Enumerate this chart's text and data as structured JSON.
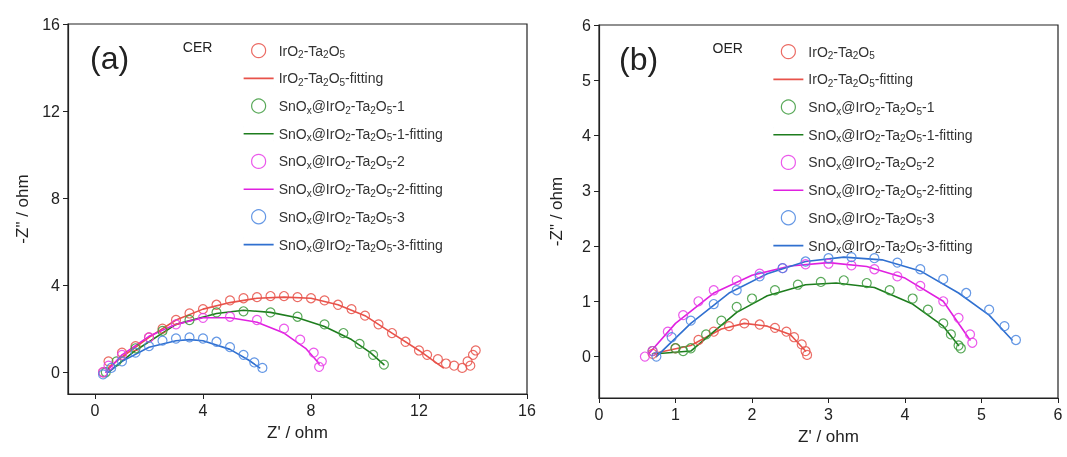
{
  "chart_data": [
    {
      "type": "scatter",
      "xlabel": "Z' / ohm",
      "ylabel": "-Z\" / ohm",
      "legend_title": "CER",
      "annotations": [
        "(a)"
      ],
      "xlim": [
        -1,
        16
      ],
      "ylim": [
        -1,
        16
      ],
      "xticks": [
        0,
        4,
        8,
        12,
        16
      ],
      "yticks": [
        0,
        4,
        8,
        12,
        16
      ],
      "legend": "top",
      "series": [
        {
          "name": "IrO$_{2}$-Ta$_{2}$O$_{5}$",
          "type": "scatter",
          "marker": "circle",
          "color": "#e8524a",
          "x": [
            0.3,
            0.5,
            1,
            1.5,
            2,
            2.5,
            3,
            3.5,
            4,
            4.5,
            5,
            5.5,
            6,
            6.5,
            7,
            7.5,
            8,
            8.5,
            9,
            9.5,
            10,
            10.5,
            11,
            11.5,
            12,
            12.3,
            12.7,
            13,
            13.3,
            13.6,
            13.9,
            13.8,
            14.0,
            14.1
          ],
          "values": [
            0,
            0.5,
            0.9,
            1.2,
            1.6,
            2.0,
            2.4,
            2.7,
            2.9,
            3.1,
            3.3,
            3.4,
            3.45,
            3.5,
            3.5,
            3.45,
            3.4,
            3.3,
            3.1,
            2.9,
            2.6,
            2.2,
            1.8,
            1.4,
            1.0,
            0.8,
            0.6,
            0.4,
            0.3,
            0.2,
            0.3,
            0.5,
            0.8,
            1.0
          ]
        },
        {
          "name": "IrO$_{2}$-Ta$_{2}$O$_{5}$-fitting",
          "type": "line",
          "color": "#e8524a",
          "x": [
            0.5,
            1,
            2,
            3,
            4,
            5,
            6,
            7,
            8,
            9,
            10,
            11,
            12,
            12.9
          ],
          "values": [
            0.2,
            0.7,
            1.6,
            2.4,
            2.9,
            3.2,
            3.4,
            3.45,
            3.4,
            3.1,
            2.6,
            1.8,
            1.0,
            0.2
          ]
        },
        {
          "name": "SnO$_{x}$@IrO$_{2}$-Ta$_{2}$O$_{5}$-1",
          "type": "scatter",
          "marker": "circle",
          "color": "#3c9a3c",
          "x": [
            0.4,
            0.8,
            1.5,
            2.5,
            3.5,
            4.5,
            5.5,
            6.5,
            7.5,
            8.5,
            9.2,
            9.8,
            10.3,
            10.7
          ],
          "values": [
            0,
            0.5,
            1.1,
            1.9,
            2.4,
            2.75,
            2.8,
            2.75,
            2.55,
            2.2,
            1.8,
            1.3,
            0.8,
            0.35
          ]
        },
        {
          "name": "SnO$_{x}$@IrO$_{2}$-Ta$_{2}$O$_{5}$-1-fitting",
          "type": "line",
          "color": "#1e7d1e",
          "x": [
            0.5,
            1.5,
            3,
            4.5,
            5.5,
            6.5,
            7.5,
            8.5,
            9.5,
            10.2,
            10.7
          ],
          "values": [
            0,
            1.0,
            2.2,
            2.7,
            2.85,
            2.75,
            2.5,
            2.1,
            1.5,
            0.9,
            0.35
          ]
        },
        {
          "name": "SnO$_{x}$@IrO$_{2}$-Ta$_{2}$O$_{5}$-2",
          "type": "scatter",
          "marker": "circle",
          "color": "#e83ce8",
          "x": [
            0.3,
            0.5,
            1,
            2,
            3,
            4,
            5,
            6,
            7,
            7.6,
            8.1,
            8.4,
            8.3
          ],
          "values": [
            0,
            0.3,
            0.8,
            1.6,
            2.2,
            2.5,
            2.55,
            2.4,
            2.0,
            1.5,
            0.9,
            0.5,
            0.25
          ]
        },
        {
          "name": "SnO$_{x}$@IrO$_{2}$-Ta$_{2}$O$_{5}$-2-fitting",
          "type": "line",
          "color": "#e020e0",
          "x": [
            0.4,
            1,
            2,
            3,
            4,
            5,
            6,
            7,
            7.8,
            8.3
          ],
          "values": [
            0,
            0.8,
            1.65,
            2.2,
            2.5,
            2.5,
            2.3,
            1.8,
            1.1,
            0.4
          ]
        },
        {
          "name": "SnO$_{x}$@IrO$_{2}$-Ta$_{2}$O$_{5}$-3",
          "type": "scatter",
          "marker": "circle",
          "color": "#4a86e0",
          "x": [
            0.3,
            0.6,
            1,
            1.5,
            2,
            2.5,
            3,
            3.5,
            4,
            4.5,
            5,
            5.5,
            5.9,
            6.2
          ],
          "values": [
            -0.1,
            0.2,
            0.5,
            0.9,
            1.2,
            1.45,
            1.55,
            1.6,
            1.55,
            1.4,
            1.15,
            0.8,
            0.45,
            0.2
          ]
        },
        {
          "name": "SnO$_{x}$@IrO$_{2}$-Ta$_{2}$O$_{5}$-3-fitting",
          "type": "line",
          "color": "#3070d0",
          "x": [
            0.5,
            1,
            2,
            3,
            3.5,
            4,
            5,
            5.7,
            6.1
          ],
          "values": [
            0,
            0.5,
            1.15,
            1.45,
            1.5,
            1.45,
            1.05,
            0.55,
            0.2
          ]
        }
      ]
    },
    {
      "type": "scatter",
      "xlabel": "Z' / ohm",
      "ylabel": "-Z\" / ohm",
      "legend_title": "OER",
      "annotations": [
        "(b)"
      ],
      "xlim": [
        0,
        6
      ],
      "ylim": [
        -0.75,
        6
      ],
      "xticks": [
        0,
        1,
        2,
        3,
        4,
        5,
        6
      ],
      "yticks": [
        0,
        1,
        2,
        3,
        4,
        5,
        6
      ],
      "legend": "top",
      "series": [
        {
          "name": "IrO$_{2}$-Ta$_{2}$O$_{5}$",
          "type": "scatter",
          "marker": "circle",
          "color": "#e8524a",
          "x": [
            0.7,
            1,
            1.3,
            1.5,
            1.7,
            1.9,
            2.1,
            2.3,
            2.45,
            2.55,
            2.65,
            2.7,
            2.72
          ],
          "values": [
            0.05,
            0.15,
            0.3,
            0.45,
            0.55,
            0.6,
            0.58,
            0.52,
            0.45,
            0.35,
            0.22,
            0.1,
            0.03
          ]
        },
        {
          "name": "IrO$_{2}$-Ta$_{2}$O$_{5}$-fitting",
          "type": "line",
          "color": "#e8524a",
          "x": [
            0.7,
            1.2,
            1.6,
            1.9,
            2.2,
            2.5,
            2.7
          ],
          "values": [
            0.05,
            0.2,
            0.5,
            0.6,
            0.55,
            0.4,
            0.1
          ]
        },
        {
          "name": "SnO$_{x}$@IrO$_{2}$-Ta$_{2}$O$_{5}$-1",
          "type": "scatter",
          "marker": "circle",
          "color": "#3c9a3c",
          "x": [
            0.7,
            1.0,
            1.1,
            1.2,
            1.4,
            1.6,
            1.8,
            2.0,
            2.3,
            2.6,
            2.9,
            3.2,
            3.5,
            3.8,
            4.1,
            4.3,
            4.5,
            4.6,
            4.7,
            4.73
          ],
          "values": [
            0.1,
            0.15,
            0.1,
            0.15,
            0.4,
            0.65,
            0.9,
            1.05,
            1.2,
            1.3,
            1.35,
            1.38,
            1.33,
            1.2,
            1.05,
            0.85,
            0.6,
            0.4,
            0.2,
            0.15
          ]
        },
        {
          "name": "SnO$_{x}$@IrO$_{2}$-Ta$_{2}$O$_{5}$-1-fitting",
          "type": "line",
          "color": "#1e7d1e",
          "x": [
            0.75,
            1.2,
            1.5,
            1.8,
            2.2,
            2.7,
            3.1,
            3.6,
            4.1,
            4.5,
            4.7
          ],
          "values": [
            0.05,
            0.1,
            0.45,
            0.8,
            1.1,
            1.3,
            1.33,
            1.25,
            0.95,
            0.55,
            0.2
          ]
        },
        {
          "name": "SnO$_{x}$@IrO$_{2}$-Ta$_{2}$O$_{5}$-2",
          "type": "scatter",
          "marker": "circle",
          "color": "#e83ce8",
          "x": [
            0.6,
            0.7,
            0.9,
            1.1,
            1.3,
            1.5,
            1.8,
            2.1,
            2.4,
            2.7,
            3.0,
            3.3,
            3.6,
            3.9,
            4.2,
            4.5,
            4.7,
            4.85,
            4.88
          ],
          "values": [
            0,
            0.1,
            0.45,
            0.75,
            1.0,
            1.2,
            1.38,
            1.5,
            1.6,
            1.67,
            1.68,
            1.65,
            1.58,
            1.45,
            1.28,
            1.0,
            0.7,
            0.4,
            0.25
          ]
        },
        {
          "name": "SnO$_{x}$@IrO$_{2}$-Ta$_{2}$O$_{5}$-2-fitting",
          "type": "line",
          "color": "#e020e0",
          "x": [
            0.65,
            1.0,
            1.5,
            2.0,
            2.5,
            3.0,
            3.5,
            4.0,
            4.5,
            4.85
          ],
          "values": [
            0.05,
            0.6,
            1.15,
            1.47,
            1.64,
            1.7,
            1.63,
            1.42,
            1.0,
            0.3
          ]
        },
        {
          "name": "SnO$_{x}$@IrO$_{2}$-Ta$_{2}$O$_{5}$-3",
          "type": "scatter",
          "marker": "circle",
          "color": "#4a86e0",
          "x": [
            0.75,
            0.95,
            1.2,
            1.5,
            1.8,
            2.1,
            2.4,
            2.7,
            3.0,
            3.3,
            3.6,
            3.9,
            4.2,
            4.5,
            4.8,
            5.1,
            5.3,
            5.45
          ],
          "values": [
            0,
            0.35,
            0.65,
            0.95,
            1.2,
            1.45,
            1.6,
            1.72,
            1.78,
            1.8,
            1.78,
            1.7,
            1.58,
            1.4,
            1.15,
            0.85,
            0.55,
            0.3
          ]
        },
        {
          "name": "SnO$_{x}$@IrO$_{2}$-Ta$_{2}$O$_{5}$-3-fitting",
          "type": "line",
          "color": "#3070d0",
          "x": [
            0.75,
            1.2,
            1.7,
            2.2,
            2.7,
            3.2,
            3.7,
            4.2,
            4.7,
            5.1,
            5.4
          ],
          "values": [
            0,
            0.6,
            1.15,
            1.5,
            1.72,
            1.8,
            1.75,
            1.55,
            1.15,
            0.75,
            0.3
          ]
        }
      ]
    }
  ]
}
